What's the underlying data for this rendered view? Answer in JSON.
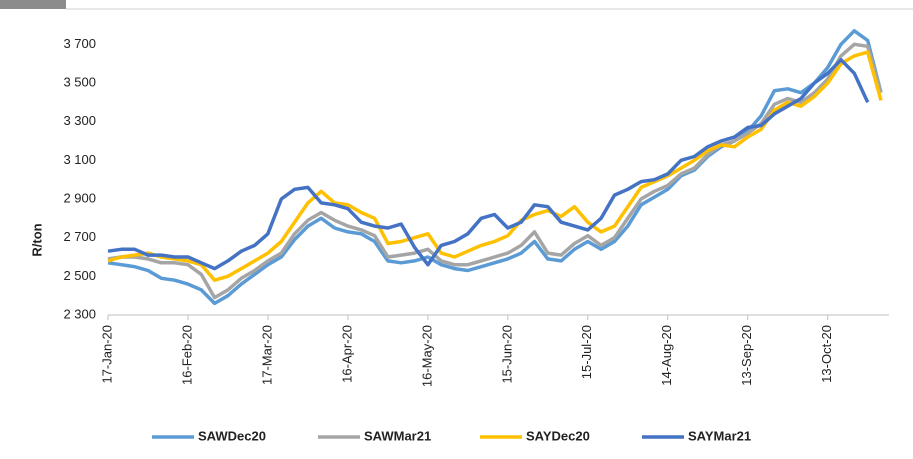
{
  "chart_data": {
    "type": "line",
    "y_label": "R/ton",
    "x": [
      "2020-01-17",
      "2020-01-22",
      "2020-01-27",
      "2020-02-01",
      "2020-02-06",
      "2020-02-11",
      "2020-02-16",
      "2020-02-21",
      "2020-02-26",
      "2020-03-02",
      "2020-03-07",
      "2020-03-12",
      "2020-03-17",
      "2020-03-22",
      "2020-03-27",
      "2020-04-01",
      "2020-04-06",
      "2020-04-11",
      "2020-04-16",
      "2020-04-21",
      "2020-04-26",
      "2020-05-01",
      "2020-05-06",
      "2020-05-11",
      "2020-05-16",
      "2020-05-21",
      "2020-05-26",
      "2020-05-31",
      "2020-06-05",
      "2020-06-10",
      "2020-06-15",
      "2020-06-20",
      "2020-06-25",
      "2020-06-30",
      "2020-07-05",
      "2020-07-10",
      "2020-07-15",
      "2020-07-20",
      "2020-07-25",
      "2020-07-30",
      "2020-08-04",
      "2020-08-09",
      "2020-08-14",
      "2020-08-19",
      "2020-08-24",
      "2020-08-29",
      "2020-09-03",
      "2020-09-08",
      "2020-09-13",
      "2020-09-18",
      "2020-09-23",
      "2020-09-28",
      "2020-10-03",
      "2020-10-08",
      "2020-10-13",
      "2020-10-18",
      "2020-10-23",
      "2020-10-28",
      "2020-11-02"
    ],
    "series": [
      {
        "name": "SAWDec20",
        "color": "#5b9bd5",
        "values": [
          2570,
          2560,
          2550,
          2530,
          2490,
          2480,
          2460,
          2430,
          2360,
          2400,
          2460,
          2510,
          2560,
          2600,
          2690,
          2760,
          2800,
          2750,
          2730,
          2720,
          2680,
          2580,
          2570,
          2580,
          2600,
          2560,
          2540,
          2530,
          2550,
          2570,
          2590,
          2620,
          2680,
          2590,
          2580,
          2640,
          2680,
          2640,
          2680,
          2760,
          2870,
          2910,
          2950,
          3020,
          3050,
          3120,
          3170,
          3200,
          3250,
          3330,
          3460,
          3470,
          3450,
          3500,
          3580,
          3700,
          3770,
          3720,
          3450
        ]
      },
      {
        "name": "SAWMar21",
        "color": "#a5a5a5",
        "values": [
          2590,
          2600,
          2600,
          2590,
          2570,
          2570,
          2560,
          2510,
          2390,
          2430,
          2490,
          2530,
          2580,
          2620,
          2720,
          2790,
          2830,
          2790,
          2760,
          2740,
          2710,
          2600,
          2610,
          2620,
          2640,
          2580,
          2560,
          2560,
          2580,
          2600,
          2620,
          2660,
          2730,
          2620,
          2610,
          2670,
          2710,
          2660,
          2700,
          2800,
          2900,
          2940,
          2970,
          3030,
          3060,
          3130,
          3180,
          3200,
          3240,
          3290,
          3390,
          3420,
          3400,
          3450,
          3520,
          3640,
          3700,
          3690,
          3450
        ]
      },
      {
        "name": "SAYDec20",
        "color": "#ffc000",
        "values": [
          2580,
          2600,
          2610,
          2620,
          2600,
          2590,
          2580,
          2560,
          2480,
          2500,
          2540,
          2580,
          2620,
          2680,
          2780,
          2880,
          2940,
          2880,
          2870,
          2830,
          2800,
          2670,
          2680,
          2700,
          2720,
          2620,
          2600,
          2630,
          2660,
          2680,
          2710,
          2790,
          2820,
          2840,
          2810,
          2860,
          2780,
          2730,
          2760,
          2860,
          2960,
          2990,
          3020,
          3060,
          3100,
          3150,
          3180,
          3170,
          3220,
          3260,
          3360,
          3400,
          3380,
          3430,
          3500,
          3600,
          3640,
          3660,
          3410
        ]
      },
      {
        "name": "SAYMar21",
        "color": "#4472c4",
        "values": [
          2630,
          2640,
          2640,
          2610,
          2610,
          2600,
          2600,
          2570,
          2540,
          2580,
          2630,
          2660,
          2720,
          2900,
          2950,
          2960,
          2880,
          2870,
          2850,
          2780,
          2760,
          2750,
          2770,
          2650,
          2560,
          2660,
          2680,
          2720,
          2800,
          2820,
          2750,
          2780,
          2870,
          2860,
          2780,
          2760,
          2740,
          2800,
          2920,
          2950,
          2990,
          3000,
          3030,
          3100,
          3120,
          3170,
          3200,
          3220,
          3270,
          3280,
          3340,
          3380,
          3420,
          3500,
          3550,
          3620,
          3550,
          3400,
          null
        ]
      }
    ],
    "xlim": [
      "2020-01-17",
      "2020-11-05"
    ],
    "xticks": [
      {
        "value": "2020-01-17",
        "label": "17-Jan-20"
      },
      {
        "value": "2020-02-16",
        "label": "16-Feb-20"
      },
      {
        "value": "2020-03-17",
        "label": "17-Mar-20"
      },
      {
        "value": "2020-04-16",
        "label": "16-Apr-20"
      },
      {
        "value": "2020-05-16",
        "label": "16-May-20"
      },
      {
        "value": "2020-06-15",
        "label": "15-Jun-20"
      },
      {
        "value": "2020-07-15",
        "label": "15-Jul-20"
      },
      {
        "value": "2020-08-14",
        "label": "14-Aug-20"
      },
      {
        "value": "2020-09-13",
        "label": "13-Sep-20"
      },
      {
        "value": "2020-10-13",
        "label": "13-Oct-20"
      }
    ],
    "ylim": [
      2300,
      3800
    ],
    "yticks": [
      {
        "value": 2300,
        "label": "2 300"
      },
      {
        "value": 2500,
        "label": "2 500"
      },
      {
        "value": 2700,
        "label": "2 700"
      },
      {
        "value": 2900,
        "label": "2 900"
      },
      {
        "value": 3100,
        "label": "3 100"
      },
      {
        "value": 3300,
        "label": "3 300"
      },
      {
        "value": 3500,
        "label": "3 500"
      },
      {
        "value": 3700,
        "label": "3 700"
      }
    ],
    "grid": false,
    "legend": "bottom"
  }
}
